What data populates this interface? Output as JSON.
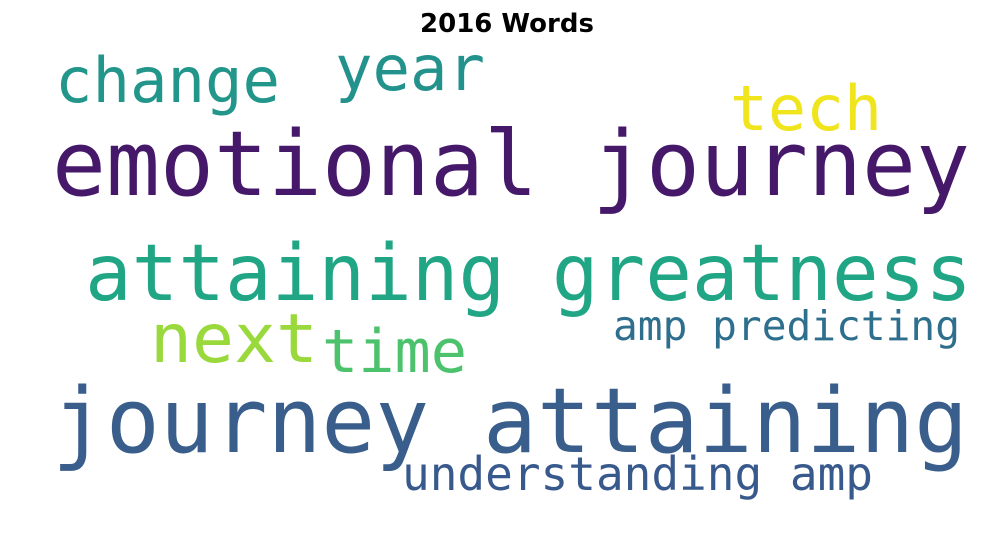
{
  "chart_data": {
    "type": "wordcloud",
    "title": "2016 Words",
    "words": [
      {
        "text": "emotional journey",
        "color": "#45186a"
      },
      {
        "text": "journey attaining",
        "color": "#3a5e8c"
      },
      {
        "text": "attaining greatness",
        "color": "#21a685"
      },
      {
        "text": "change",
        "color": "#22968b"
      },
      {
        "text": "year",
        "color": "#23928c"
      },
      {
        "text": "tech",
        "color": "#f0e51c"
      },
      {
        "text": "next",
        "color": "#9ad93c"
      },
      {
        "text": "time",
        "color": "#4cc26c"
      },
      {
        "text": "amp predicting",
        "color": "#2f6f8e"
      },
      {
        "text": "understanding amp",
        "color": "#38598c"
      }
    ]
  }
}
